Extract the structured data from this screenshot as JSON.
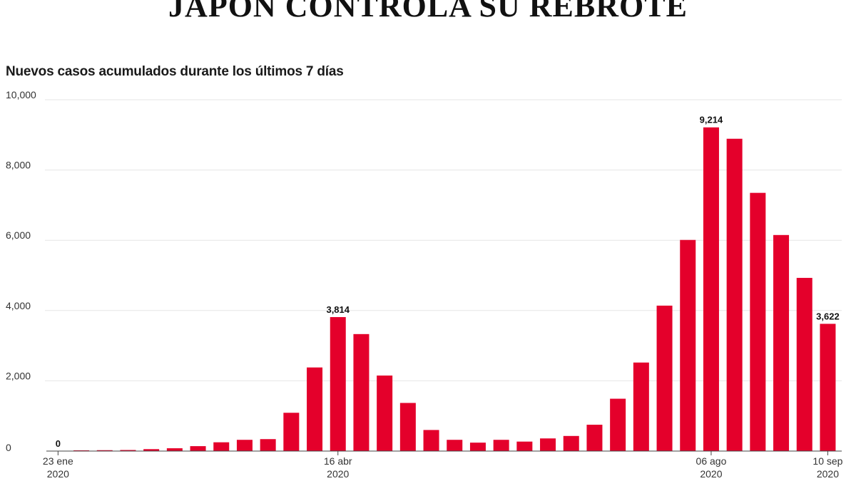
{
  "header": {
    "title": "JAPÓN CONTROLA SU REBROTE",
    "subtitle": "Nuevos casos acumulados durante los últimos 7 días"
  },
  "colors": {
    "bar": "#e4002b",
    "grid": "#e6e6e6",
    "axis": "#444444"
  },
  "chart_data": {
    "type": "bar",
    "title": "JAPÓN CONTROLA SU REBROTE",
    "subtitle": "Nuevos casos acumulados durante los últimos 7 días",
    "ylim": [
      0,
      10000
    ],
    "y_ticks": [
      "10,000",
      "8,000",
      "6,000",
      "4,000",
      "2,000",
      "0"
    ],
    "y_tick_values": [
      10000,
      8000,
      6000,
      4000,
      2000,
      0
    ],
    "values": [
      0,
      20,
      25,
      30,
      55,
      80,
      140,
      250,
      320,
      340,
      1090,
      2380,
      3814,
      3330,
      2150,
      1370,
      600,
      320,
      240,
      320,
      270,
      360,
      430,
      750,
      1490,
      2520,
      4140,
      6010,
      9214,
      8890,
      7350,
      6150,
      4930,
      3622
    ],
    "x_labels": [
      {
        "index": 0,
        "line1": "23 ene",
        "line2": "2020"
      },
      {
        "index": 12,
        "line1": "16 abr",
        "line2": "2020"
      },
      {
        "index": 28,
        "line1": "06 ago",
        "line2": "2020"
      },
      {
        "index": 33,
        "line1": "10 sep",
        "line2": "2020"
      }
    ],
    "data_labels": [
      {
        "index": 0,
        "text": "0"
      },
      {
        "index": 12,
        "text": "3,814"
      },
      {
        "index": 28,
        "text": "9,214"
      },
      {
        "index": 33,
        "text": "3,622"
      }
    ],
    "grid": true,
    "legend": "none"
  }
}
